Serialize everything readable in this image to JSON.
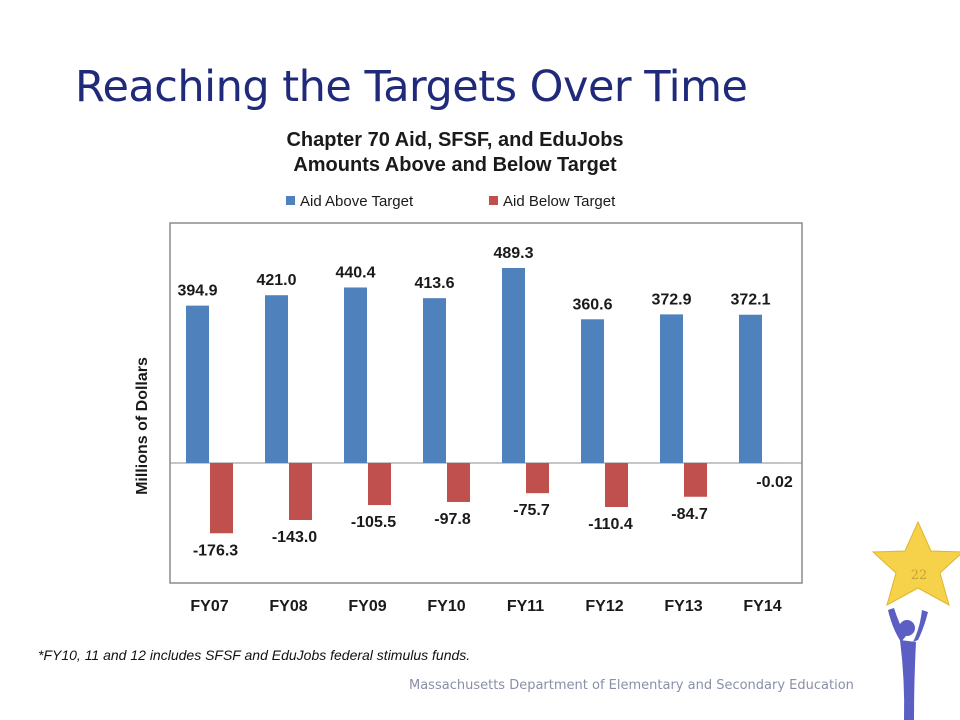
{
  "slide": {
    "title": "Reaching the Targets Over Time",
    "footnote": "*FY10, 11 and 12 includes SFSF and EduJobs federal stimulus funds.",
    "footer": "Massachusetts Department of Elementary and Secondary Education",
    "page_number": "22"
  },
  "colors": {
    "title": "#1f2a7a",
    "above": "#4f81bd",
    "below": "#c0504d",
    "star": "#f5d24a",
    "figure": "#5b5fc4"
  },
  "chart_data": {
    "type": "bar",
    "title_lines": [
      "Chapter 70 Aid, SFSF, and EduJobs",
      "Amounts Above and Below Target"
    ],
    "ylabel": "Millions of Dollars",
    "xlabel": "",
    "categories": [
      "FY07",
      "FY08",
      "FY09",
      "FY10",
      "FY11",
      "FY12",
      "FY13",
      "FY14"
    ],
    "series": [
      {
        "name": "Aid Above Target",
        "values": [
          394.9,
          421.0,
          440.4,
          413.6,
          489.3,
          360.6,
          372.9,
          372.1
        ]
      },
      {
        "name": "Aid Below Target",
        "values": [
          -176.3,
          -143.0,
          -105.5,
          -97.8,
          -75.7,
          -110.4,
          -84.7,
          -0.02
        ]
      }
    ],
    "data_labels": {
      "above": [
        "394.9",
        "421.0",
        "440.4",
        "413.6",
        "489.3",
        "360.6",
        "372.9",
        "372.1"
      ],
      "below": [
        "-176.3",
        "-143.0",
        "-105.5",
        "-97.8",
        "-75.7",
        "-110.4",
        "-84.7",
        "-0.02"
      ]
    },
    "ylim": [
      -230,
      540
    ],
    "grid": false,
    "legend_position": "top"
  }
}
